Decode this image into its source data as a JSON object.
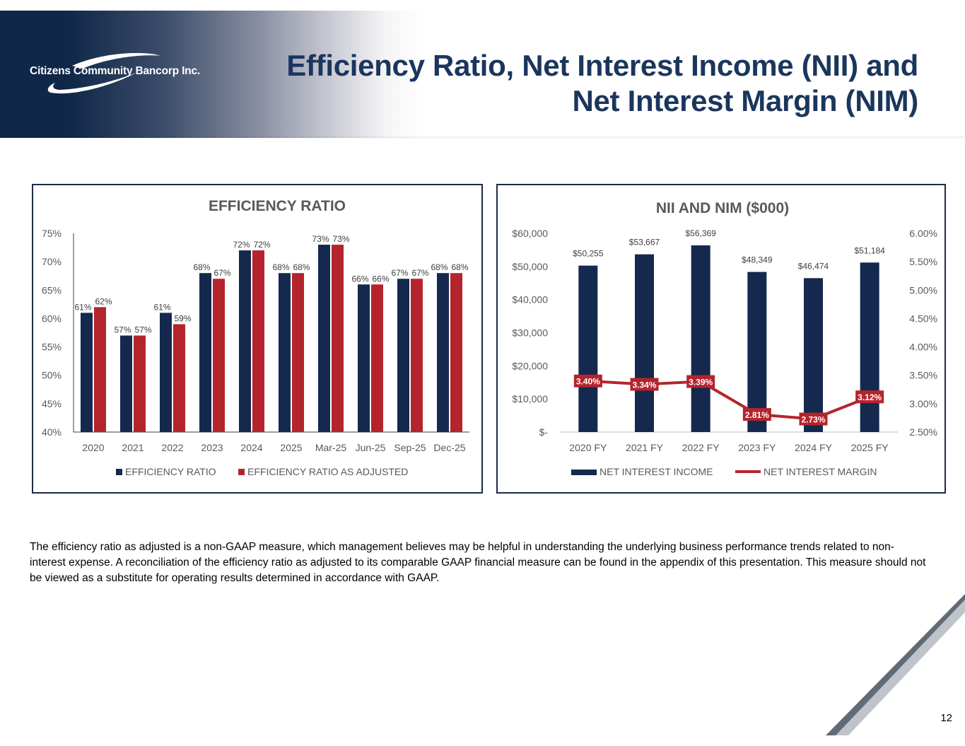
{
  "header": {
    "brand": "Citizens Community Bancorp Inc.",
    "title_line1": "Efficiency Ratio, Net Interest Income (NII) and",
    "title_line2": "Net Interest Margin (NIM)"
  },
  "colors": {
    "navy": "#14294d",
    "red": "#b5242c",
    "title": "#1b365d"
  },
  "chart_data": [
    {
      "type": "bar",
      "title": "EFFICIENCY RATIO",
      "categories": [
        "2020",
        "2021",
        "2022",
        "2023",
        "2024",
        "2025",
        "Mar-25",
        "Jun-25",
        "Sep-25",
        "Dec-25"
      ],
      "series": [
        {
          "name": "EFFICIENCY RATIO",
          "values": [
            61,
            57,
            61,
            68,
            72,
            68,
            73,
            66,
            67,
            68
          ],
          "labels": [
            "61%",
            "57%",
            "61%",
            "68%",
            "72%",
            "68%",
            "73%",
            "66%",
            "67%",
            "68%"
          ],
          "color": "#14294d"
        },
        {
          "name": "EFFICIENCY RATIO AS ADJUSTED",
          "values": [
            62,
            57,
            59,
            67,
            72,
            68,
            73,
            66,
            67,
            68
          ],
          "labels": [
            "62%",
            "57%",
            "59%",
            "67%",
            "72%",
            "68%",
            "73%",
            "66%",
            "67%",
            "68%"
          ],
          "color": "#b5242c"
        }
      ],
      "ylim": [
        40,
        75
      ],
      "yticks": [
        40,
        45,
        50,
        55,
        60,
        65,
        70,
        75
      ],
      "ytick_labels": [
        "40%",
        "45%",
        "50%",
        "55%",
        "60%",
        "65%",
        "70%",
        "75%"
      ],
      "legend": "bottom",
      "grid": false
    },
    {
      "type": "bar",
      "title": "NII AND NIM ($000)",
      "categories": [
        "2020 FY",
        "2021 FY",
        "2022 FY",
        "2023 FY",
        "2024 FY",
        "2025 FY"
      ],
      "series": [
        {
          "name": "NET INTEREST INCOME",
          "values": [
            50255,
            53667,
            56369,
            48349,
            46474,
            51184
          ],
          "labels": [
            "$50,255",
            "$53,667",
            "$56,369",
            "$48,349",
            "$46,474",
            "$51,184"
          ],
          "color": "#14294d",
          "axis": "left"
        },
        {
          "name": "NET INTEREST MARGIN",
          "type": "line",
          "values": [
            3.4,
            3.34,
            3.39,
            2.81,
            2.73,
            3.12
          ],
          "labels": [
            "3.40%",
            "3.34%",
            "3.39%",
            "2.81%",
            "2.73%",
            "3.12%"
          ],
          "color": "#b5242c",
          "axis": "right"
        }
      ],
      "ylim": [
        0,
        60000
      ],
      "yticks": [
        0,
        10000,
        20000,
        30000,
        40000,
        50000,
        60000
      ],
      "ytick_labels": [
        "$-",
        "$10,000",
        "$20,000",
        "$30,000",
        "$40,000",
        "$50,000",
        "$60,000"
      ],
      "y2lim": [
        2.5,
        6.0
      ],
      "y2ticks": [
        2.5,
        3.0,
        3.5,
        4.0,
        4.5,
        5.0,
        5.5,
        6.0
      ],
      "y2tick_labels": [
        "2.50%",
        "3.00%",
        "3.50%",
        "4.00%",
        "4.50%",
        "5.00%",
        "5.50%",
        "6.00%"
      ],
      "legend": "bottom",
      "grid": false
    }
  ],
  "footnote": "The efficiency ratio as adjusted is a non-GAAP measure, which management believes may be helpful in understanding the underlying business performance trends related to non-interest expense. A reconciliation of the efficiency ratio as adjusted to its comparable GAAP financial measure can be found in the appendix of this presentation. This measure should not be viewed as a substitute for operating results determined in accordance with GAAP.",
  "page_number": "12"
}
